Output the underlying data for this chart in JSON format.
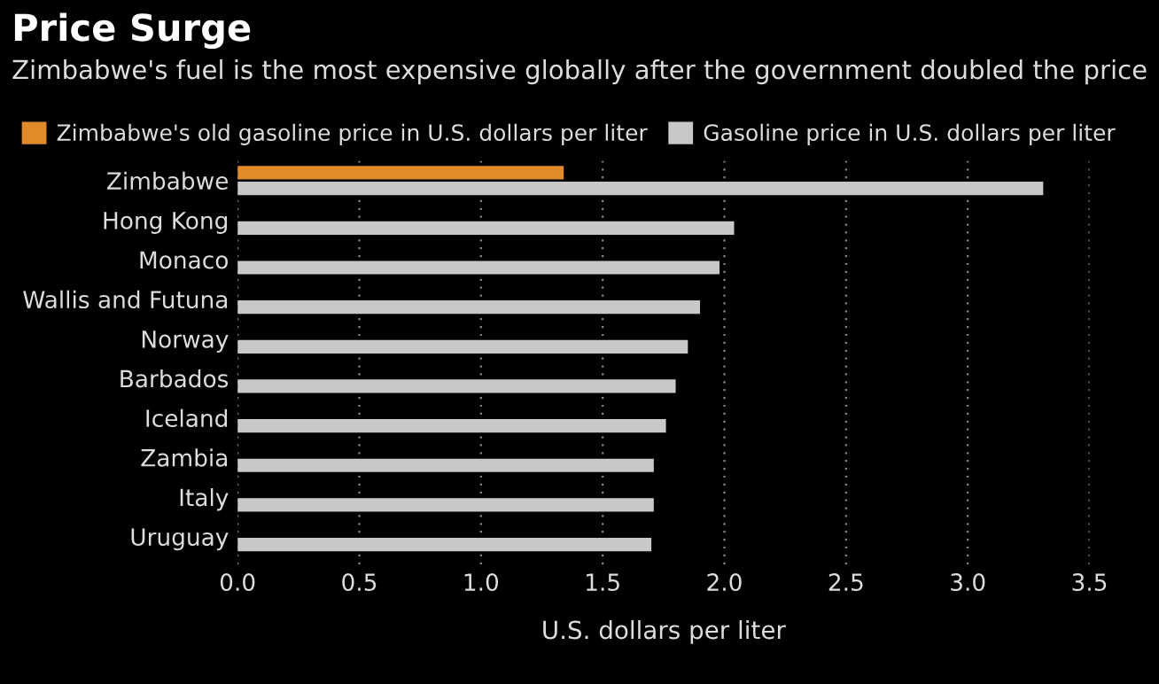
{
  "chart_data": {
    "type": "bar",
    "orientation": "horizontal",
    "title": "Price Surge",
    "subtitle": "Zimbabwe's fuel is the most expensive globally after the government doubled the price",
    "xlabel": "U.S. dollars per liter",
    "categories": [
      "Zimbabwe",
      "Hong Kong",
      "Monaco",
      "Wallis and Futuna",
      "Norway",
      "Barbados",
      "Iceland",
      "Zambia",
      "Italy",
      "Uruguay"
    ],
    "series": [
      {
        "name": "Zimbabwe's old gasoline price in U.S. dollars per liter",
        "color": "#e08a2a",
        "values": [
          1.34,
          null,
          null,
          null,
          null,
          null,
          null,
          null,
          null,
          null
        ]
      },
      {
        "name": "Gasoline price in U.S. dollars per liter",
        "color": "#c8c8c8",
        "values": [
          3.31,
          2.04,
          1.98,
          1.9,
          1.85,
          1.8,
          1.76,
          1.71,
          1.71,
          1.7
        ]
      }
    ],
    "xlim": [
      0,
      3.5
    ],
    "xticks": [
      {
        "value": 0,
        "label": "0.0"
      },
      0.5,
      {
        "value": 1,
        "label": "1.0"
      },
      1.5,
      {
        "value": 2,
        "label": "2.0"
      },
      2.5,
      {
        "value": 3,
        "label": "3.0"
      },
      3.5
    ],
    "grid": "x",
    "legend": "top left"
  }
}
